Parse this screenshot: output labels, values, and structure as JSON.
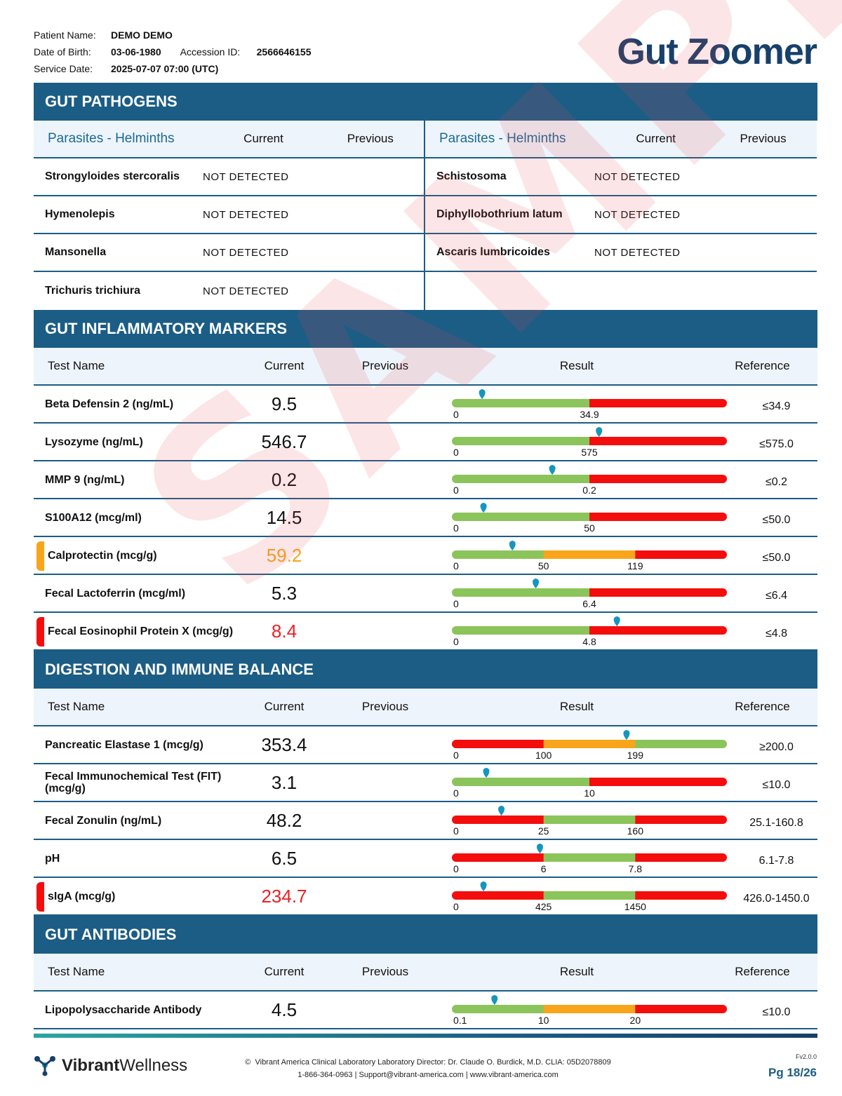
{
  "patient": {
    "name_label": "Patient Name:",
    "name": "DEMO DEMO",
    "dob_label": "Date of Birth:",
    "dob": "03-06-1980",
    "accession_label": "Accession ID:",
    "accession": "2566646155",
    "service_label": "Service Date:",
    "service_date": "2025-07-07 07:00 (UTC)"
  },
  "report_title": "Gut Zoomer",
  "watermark": "SAMPLE",
  "pathogens": {
    "title": "GUT PATHOGENS",
    "col_title": "Parasites - Helminths",
    "current_label": "Current",
    "previous_label": "Previous",
    "left": [
      {
        "name": "Strongyloides stercoralis",
        "result": "NOT DETECTED"
      },
      {
        "name": "Hymenolepis",
        "result": "NOT DETECTED"
      },
      {
        "name": "Mansonella",
        "result": "NOT DETECTED"
      },
      {
        "name": "Trichuris trichiura",
        "result": "NOT DETECTED"
      }
    ],
    "right": [
      {
        "name": "Schistosoma",
        "result": "NOT DETECTED"
      },
      {
        "name": "Diphyllobothrium latum",
        "result": "NOT DETECTED"
      },
      {
        "name": "Ascaris lumbricoides",
        "result": "NOT DETECTED"
      },
      {
        "name": "",
        "result": ""
      }
    ]
  },
  "table_headers": {
    "name": "Test Name",
    "current": "Current",
    "previous": "Previous",
    "result": "Result",
    "reference": "Reference"
  },
  "colors": {
    "green": "#8bc45a",
    "orange": "#f8a51b",
    "red": "#f40d0d",
    "pin": "#1596be",
    "flag_orange": "#f8a51b",
    "flag_red": "#f40d0d",
    "val_orange": "#f8a51b",
    "val_red": "#ec2024",
    "header_blue": "#1b5d85"
  },
  "sections": [
    {
      "title": "GUT INFLAMMATORY MARKERS",
      "rows": [
        {
          "name": "Beta Defensin 2 (ng/mL)",
          "current": "9.5",
          "status": "normal",
          "reference": "≤34.9",
          "ticks": [
            "0",
            "34.9"
          ],
          "segments": [
            "green",
            "red"
          ],
          "pin": 0.11
        },
        {
          "name": "Lysozyme (ng/mL)",
          "current": "546.7",
          "status": "normal",
          "reference": "≤575.0",
          "ticks": [
            "0",
            "575"
          ],
          "segments": [
            "green",
            "red"
          ],
          "pin": 0.535
        },
        {
          "name": "MMP 9 (ng/mL)",
          "current": "0.2",
          "status": "normal",
          "reference": "≤0.2",
          "ticks": [
            "0",
            "0.2"
          ],
          "segments": [
            "green",
            "red"
          ],
          "pin": 0.365
        },
        {
          "name": "S100A12 (mcg/ml)",
          "current": "14.5",
          "status": "normal",
          "reference": "≤50.0",
          "ticks": [
            "0",
            "50"
          ],
          "segments": [
            "green",
            "red"
          ],
          "pin": 0.115
        },
        {
          "name": "Calprotectin (mcg/g)",
          "current": "59.2",
          "status": "orange",
          "reference": "≤50.0",
          "ticks": [
            "0",
            "50",
            "119"
          ],
          "segments": [
            "green",
            "orange",
            "red"
          ],
          "pin": 0.22
        },
        {
          "name": "Fecal Lactoferrin (mcg/ml)",
          "current": "5.3",
          "status": "normal",
          "reference": "≤6.4",
          "ticks": [
            "0",
            "6.4"
          ],
          "segments": [
            "green",
            "red"
          ],
          "pin": 0.305
        },
        {
          "name": "Fecal Eosinophil Protein X (mcg/g)",
          "current": "8.4",
          "status": "red",
          "reference": "≤4.8",
          "ticks": [
            "0",
            "4.8"
          ],
          "segments": [
            "green",
            "red"
          ],
          "pin": 0.6
        }
      ]
    },
    {
      "title": "DIGESTION AND IMMUNE BALANCE",
      "rows": [
        {
          "name": "Pancreatic Elastase 1 (mcg/g)",
          "current": "353.4",
          "status": "normal",
          "reference": "≥200.0",
          "ticks": [
            "0",
            "100",
            "199"
          ],
          "segments": [
            "red",
            "orange",
            "green"
          ],
          "pin": 0.635
        },
        {
          "name": "Fecal Immunochemical Test (FIT) (mcg/g)",
          "current": "3.1",
          "status": "normal",
          "reference": "≤10.0",
          "ticks": [
            "0",
            "10"
          ],
          "segments": [
            "green",
            "red"
          ],
          "pin": 0.125
        },
        {
          "name": "Fecal Zonulin (ng/mL)",
          "current": "48.2",
          "status": "normal",
          "reference": "25.1-160.8",
          "ticks": [
            "0",
            "25",
            "160"
          ],
          "segments": [
            "red",
            "green",
            "red"
          ],
          "pin": 0.18
        },
        {
          "name": "pH",
          "current": "6.5",
          "status": "normal",
          "reference": "6.1-7.8",
          "ticks": [
            "0",
            "6",
            "7.8"
          ],
          "segments": [
            "red",
            "green",
            "red"
          ],
          "pin": 0.32
        },
        {
          "name": "sIgA (mcg/g)",
          "current": "234.7",
          "status": "red",
          "reference": "426.0-1450.0",
          "ticks": [
            "0",
            "425",
            "1450"
          ],
          "segments": [
            "red",
            "green",
            "red"
          ],
          "pin": 0.115
        }
      ]
    },
    {
      "title": "GUT ANTIBODIES",
      "rows": [
        {
          "name": "Lipopolysaccharide Antibody",
          "current": "4.5",
          "status": "normal",
          "reference": "≤10.0",
          "ticks": [
            "0.1",
            "10",
            "20"
          ],
          "segments": [
            "green",
            "orange",
            "red"
          ],
          "pin": 0.155
        }
      ]
    }
  ],
  "footer": {
    "brand_bold": "Vibrant",
    "brand_light": "Wellness",
    "copyright_symbol": "©",
    "line1": "Vibrant America Clinical Laboratory Laboratory Director: Dr. Claude O. Burdick, M.D. CLIA: 05D2078809",
    "line2": "1-866-364-0963 | Support@vibrant-america.com | www.vibrant-america.com",
    "version": "Fv2.0.0",
    "page": "Pg 18/26"
  }
}
